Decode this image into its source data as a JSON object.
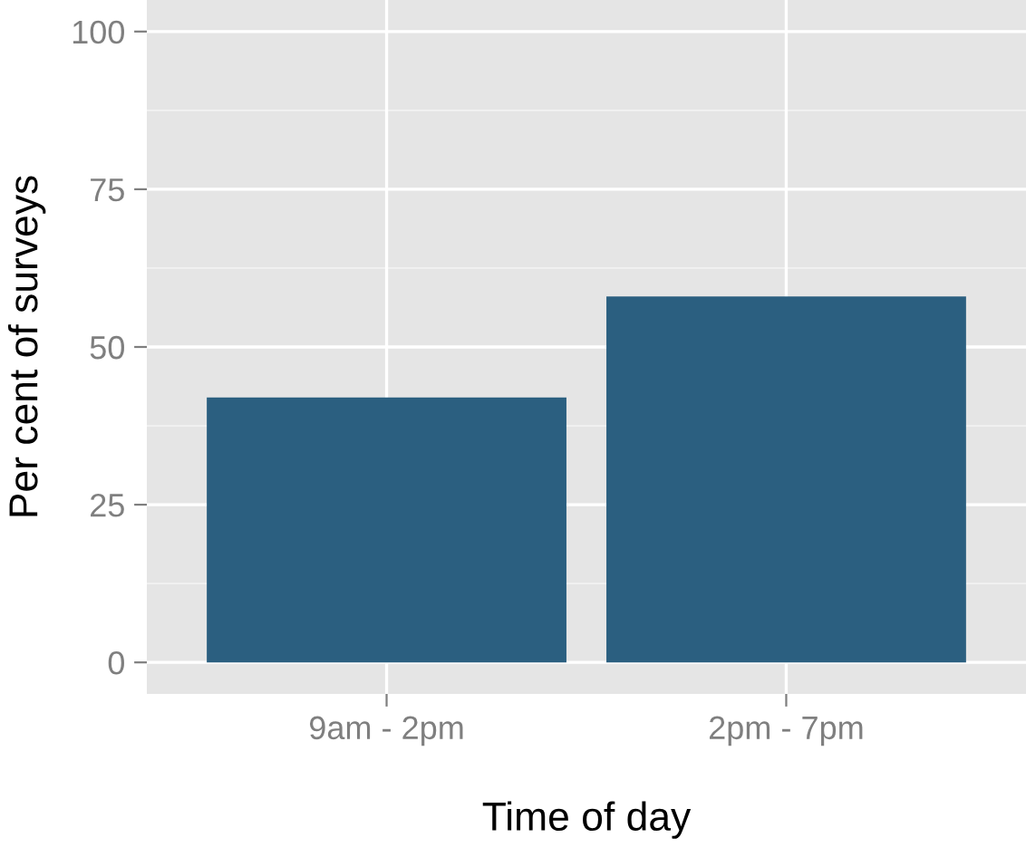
{
  "chart_data": {
    "type": "bar",
    "xlabel": "Time of day",
    "ylabel": "Per cent of surveys",
    "categories": [
      "9am - 2pm",
      "2pm - 7pm"
    ],
    "values": [
      42,
      58
    ],
    "color": "#2b5f80",
    "ylim": [
      -5,
      105
    ],
    "yticks": [
      0,
      25,
      50,
      75,
      100
    ],
    "grid": true
  }
}
